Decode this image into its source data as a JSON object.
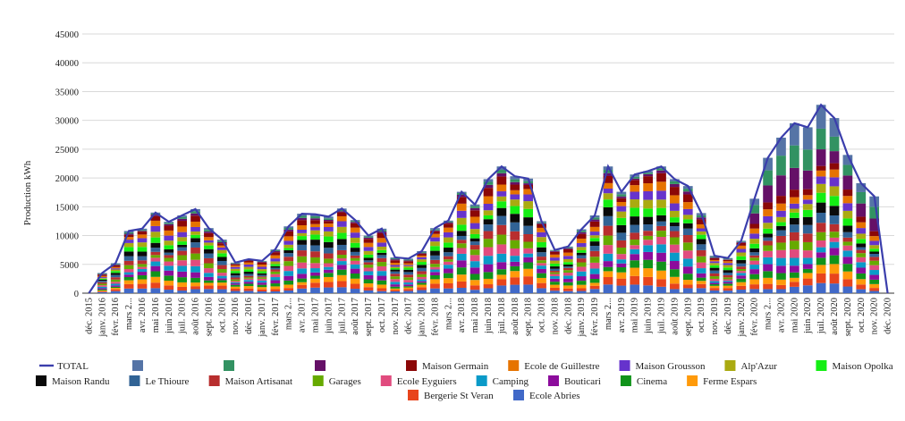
{
  "chart_data": {
    "type": "bar",
    "stacked": true,
    "ylabel": "Production kWh",
    "ylim": [
      0,
      45000
    ],
    "yticks": [
      0,
      5000,
      10000,
      15000,
      20000,
      25000,
      30000,
      35000,
      40000,
      45000
    ],
    "grid": true,
    "legend_position": "bottom",
    "categories": [
      "déc. 2015",
      "janv. 2016",
      "févr. 2016",
      "mars 2...",
      "avr. 2016",
      "mai 2016",
      "juin 2016",
      "juil. 2016",
      "août 2016",
      "sept. 2016",
      "oct. 2016",
      "nov. 2016",
      "déc. 2016",
      "janv. 2017",
      "févr. 2017",
      "mars 2...",
      "avr. 2017",
      "mai 2017",
      "juin 2017",
      "juil. 2017",
      "août 2017",
      "sept. 2017",
      "oct. 2017",
      "nov. 2017",
      "déc. 2017",
      "janv. 2018",
      "févr. 2018",
      "mars 2...",
      "avr. 2018",
      "mai 2018",
      "juin 2018",
      "juil. 2018",
      "août 2018",
      "sept. 2018",
      "oct. 2018",
      "nov. 2018",
      "déc. 2018",
      "janv. 2019",
      "févr. 2019",
      "mars 2...",
      "avr. 2019",
      "mai 2019",
      "juin 2019",
      "juil. 2019",
      "août 2019",
      "sept. 2019",
      "oct. 2019",
      "nov. 2019",
      "déc. 2019",
      "janv. 2020",
      "févr. 2020",
      "mars 2...",
      "avr. 2020",
      "mai 2020",
      "juin 2020",
      "juil. 2020",
      "août 2020",
      "sept. 2020",
      "oct. 2020",
      "nov. 2020",
      "déc. 2020"
    ],
    "total": [
      0,
      3500,
      5200,
      10800,
      11200,
      14000,
      12400,
      13500,
      14600,
      11300,
      9300,
      5300,
      5900,
      5600,
      7600,
      11600,
      13800,
      13700,
      13300,
      14700,
      12700,
      10000,
      11200,
      6200,
      6000,
      7300,
      11300,
      12600,
      17600,
      15400,
      19800,
      22000,
      20300,
      19900,
      12500,
      7500,
      8100,
      11100,
      13500,
      22000,
      17600,
      20600,
      21200,
      22000,
      19800,
      18600,
      13900,
      6500,
      6100,
      9100,
      16400,
      23500,
      27000,
      29500,
      28800,
      32700,
      30400,
      24000,
      19100,
      16800,
      0
    ],
    "series": [
      {
        "name": "Ecole Abries",
        "color": "#4169c8"
      },
      {
        "name": "Bergerie St Veran",
        "color": "#e8441c"
      },
      {
        "name": "Ferme Espars",
        "color": "#ff9a0a"
      },
      {
        "name": "Cinema",
        "color": "#10931a"
      },
      {
        "name": "Bouticari",
        "color": "#8c0c9c"
      },
      {
        "name": "Camping",
        "color": "#0a9ac8"
      },
      {
        "name": "Ecole Eyguiers",
        "color": "#e14b7e"
      },
      {
        "name": "Garages",
        "color": "#66aa00"
      },
      {
        "name": "Maison Artisanat",
        "color": "#b82e2e"
      },
      {
        "name": "Le Thioure",
        "color": "#316395"
      },
      {
        "name": "Maison Randu",
        "color": "#0a0a0a"
      },
      {
        "name": "Maison  Opolka",
        "color": "#14ee14"
      },
      {
        "name": "Alp'Azur",
        "color": "#aaaa11"
      },
      {
        "name": "Maison Grousson",
        "color": "#6633cc"
      },
      {
        "name": "Ecole de Guillestre",
        "color": "#e67300"
      },
      {
        "name": "Maison Germain",
        "color": "#8b0707"
      },
      {
        "name": "",
        "color": "#651067"
      },
      {
        "name": "",
        "color": "#329262"
      },
      {
        "name": "",
        "color": "#5574a6"
      }
    ],
    "legend": [
      {
        "label": "TOTAL",
        "type": "line",
        "color": "#3b3eac"
      },
      {
        "label": "",
        "color": "#5574a6"
      },
      {
        "label": "",
        "color": "#329262"
      },
      {
        "label": "",
        "color": "#651067"
      },
      {
        "label": "Maison Germain",
        "color": "#8b0707"
      },
      {
        "label": "Ecole de Guillestre",
        "color": "#e67300"
      },
      {
        "label": "Maison Grousson",
        "color": "#6633cc"
      },
      {
        "label": "Alp'Azur",
        "color": "#aaaa11"
      },
      {
        "label": "Maison  Opolka",
        "color": "#14ee14"
      },
      {
        "label": "Maison Randu",
        "color": "#0a0a0a"
      },
      {
        "label": "Le Thioure",
        "color": "#316395"
      },
      {
        "label": "Maison Artisanat",
        "color": "#b82e2e"
      },
      {
        "label": "Garages",
        "color": "#66aa00"
      },
      {
        "label": "Ecole Eyguiers",
        "color": "#e14b7e"
      },
      {
        "label": "Camping",
        "color": "#0a9ac8"
      },
      {
        "label": "Bouticari",
        "color": "#8c0c9c"
      },
      {
        "label": "Cinema",
        "color": "#10931a"
      },
      {
        "label": "Ferme Espars",
        "color": "#ff9a0a"
      },
      {
        "label": "Bergerie St Veran",
        "color": "#e8441c"
      },
      {
        "label": "Ecole Abries",
        "color": "#4169c8"
      }
    ]
  }
}
